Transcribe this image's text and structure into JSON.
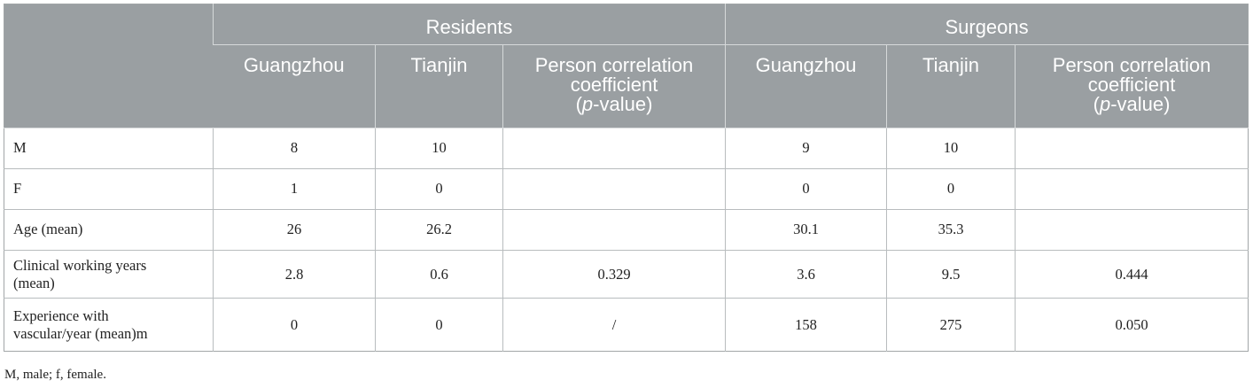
{
  "table": {
    "groups": [
      "Residents",
      "Surgeons"
    ],
    "subheaders": {
      "city1": "Guangzhou",
      "city2": "Tianjin",
      "corr_line1": "Person correlation",
      "corr_line2": "coefficient",
      "corr_p_open": "(",
      "corr_p_italic": "p",
      "corr_p_close": "-value)"
    },
    "rows": [
      {
        "label_line1": "M",
        "label_line2": "",
        "res_gz": "8",
        "res_tj": "10",
        "res_corr": "",
        "sur_gz": "9",
        "sur_tj": "10",
        "sur_corr": ""
      },
      {
        "label_line1": "F",
        "label_line2": "",
        "res_gz": "1",
        "res_tj": "0",
        "res_corr": "",
        "sur_gz": "0",
        "sur_tj": "0",
        "sur_corr": ""
      },
      {
        "label_line1": "Age (mean)",
        "label_line2": "",
        "res_gz": "26",
        "res_tj": "26.2",
        "res_corr": "",
        "sur_gz": "30.1",
        "sur_tj": "35.3",
        "sur_corr": ""
      },
      {
        "label_line1": "Clinical working years",
        "label_line2": "(mean)",
        "res_gz": "2.8",
        "res_tj": "0.6",
        "res_corr": "0.329",
        "sur_gz": "3.6",
        "sur_tj": "9.5",
        "sur_corr": "0.444"
      },
      {
        "label_line1": "Experience with",
        "label_line2": "vascular/year (mean)m",
        "res_gz": "0",
        "res_tj": "0",
        "res_corr": "/",
        "sur_gz": "158",
        "sur_tj": "275",
        "sur_corr": "0.050"
      }
    ]
  },
  "footnote": "M, male; f, female."
}
